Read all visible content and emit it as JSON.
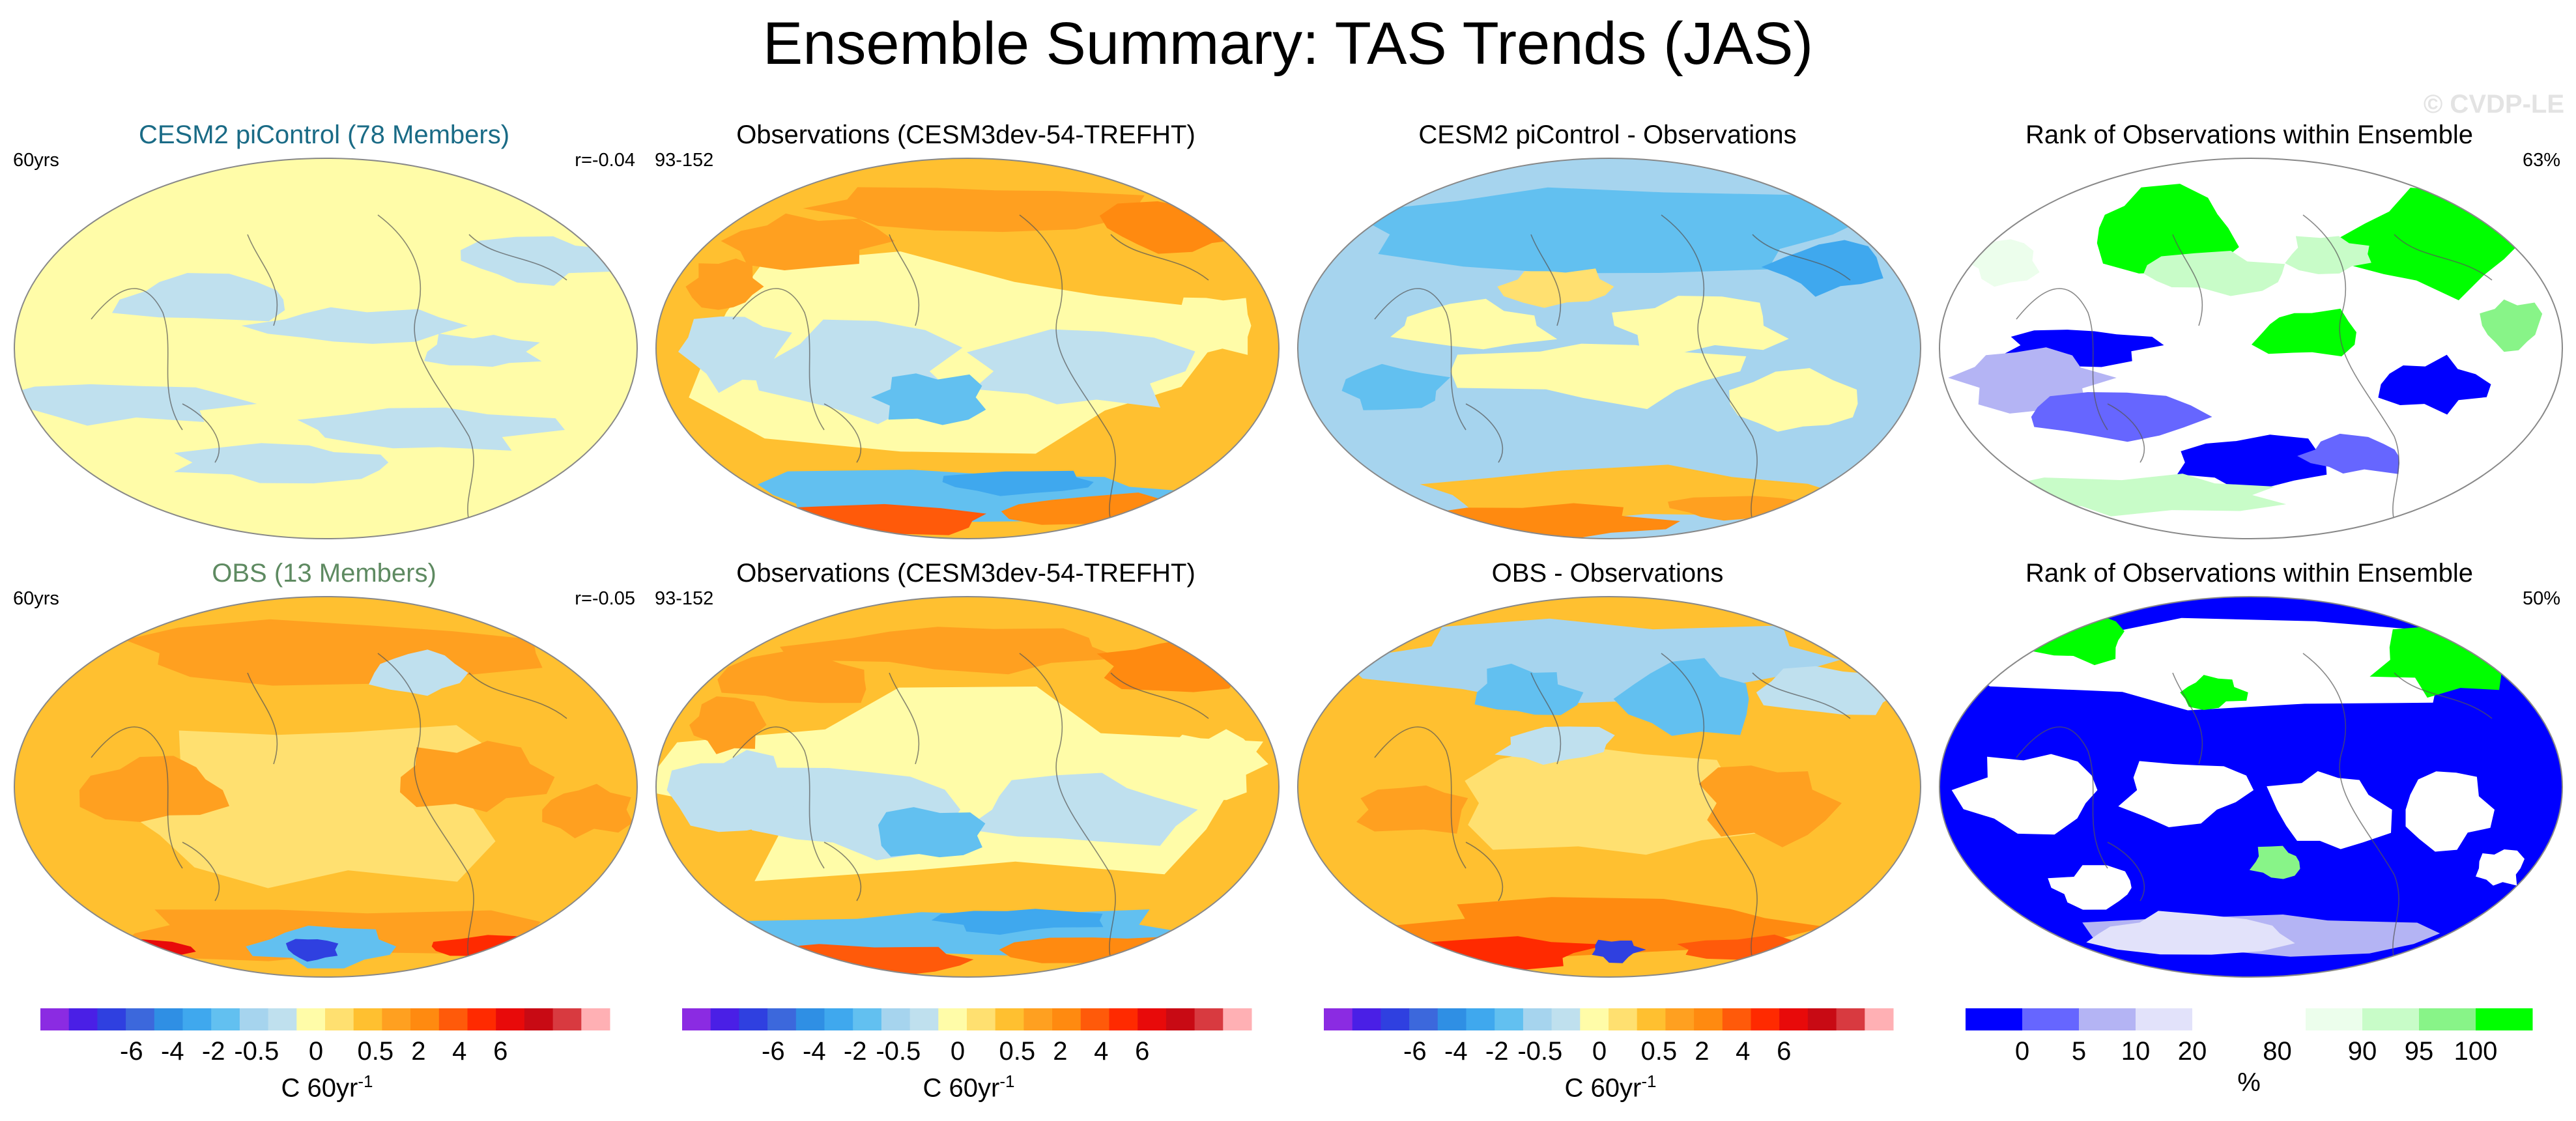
{
  "title": "Ensemble Summary: TAS Trends (JAS)",
  "watermark": "© CVDP-LE",
  "rows": [
    {
      "panels": [
        {
          "title": "CESM2 piControl (78 Members)",
          "title_color": "#1a6b86",
          "left": "60yrs",
          "right": "r=-0.04",
          "field": "pi_mean"
        },
        {
          "title": "Observations (CESM3dev-54-TREFHT)",
          "title_color": "#000000",
          "left": "93-152",
          "right": "",
          "field": "obs"
        },
        {
          "title": "CESM2 piControl - Observations",
          "title_color": "#000000",
          "left": "",
          "right": "",
          "field": "pi_diff"
        },
        {
          "title": "Rank of Observations within Ensemble",
          "title_color": "#000000",
          "left": "",
          "right": "63%",
          "field": "rank1"
        }
      ]
    },
    {
      "panels": [
        {
          "title": "OBS (13 Members)",
          "title_color": "#5e8a61",
          "left": "60yrs",
          "right": "r=-0.05",
          "field": "obs_mean"
        },
        {
          "title": "Observations (CESM3dev-54-TREFHT)",
          "title_color": "#000000",
          "left": "93-152",
          "right": "",
          "field": "obs"
        },
        {
          "title": "OBS - Observations",
          "title_color": "#000000",
          "left": "",
          "right": "",
          "field": "obs_diff"
        },
        {
          "title": "Rank of Observations within Ensemble",
          "title_color": "#000000",
          "left": "",
          "right": "50%",
          "field": "rank2"
        }
      ]
    }
  ],
  "colorbars": {
    "trend": {
      "colors": [
        "#8b2be2",
        "#4a1fe6",
        "#2f40e0",
        "#3c68dc",
        "#2f8fe4",
        "#3fa8ee",
        "#62c0f0",
        "#a6d4ee",
        "#bfe0ee",
        "#fffca8",
        "#ffe070",
        "#ffc030",
        "#ffa020",
        "#ff8a10",
        "#ff5a0a",
        "#ff2a00",
        "#e80a0a",
        "#c80a14",
        "#d83a40",
        "#ffb0b4"
      ],
      "ticks": [
        "-6",
        "-4",
        "-2",
        "-0.5",
        "0",
        "0.5",
        "2",
        "4",
        "6"
      ],
      "unit": "C 60yr",
      "unit_sup": "-1"
    },
    "rank": {
      "colors": [
        "#0000ff",
        "#6666ff",
        "#b4b4f4",
        "#e2e2fa",
        "#ffffff",
        "#ffffff",
        "#ecfeec",
        "#c8fcc8",
        "#88f488",
        "#00ff00"
      ],
      "ticks": [
        "0",
        "5",
        "10",
        "20",
        "80",
        "90",
        "95",
        "100"
      ],
      "unit": "%"
    }
  }
}
